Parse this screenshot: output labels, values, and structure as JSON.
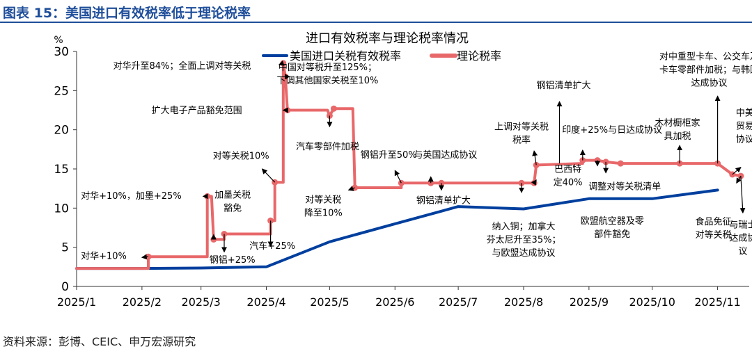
{
  "header": {
    "figure_title": "图表 15：美国进口有效税率低于理论税率"
  },
  "footer": {
    "source": "资料来源：彭博、CEIC、申万宏源研究"
  },
  "colors": {
    "effective": "#003f9e",
    "theoretical": "#e8686a",
    "title": "#1f4e9a",
    "axis": "#333333"
  },
  "chart_data": {
    "type": "line",
    "title": "进口有效税率与理论税率情况",
    "ylabel": "%",
    "xlabel": "",
    "ylim": [
      0,
      30
    ],
    "yticks": [
      0,
      5,
      10,
      15,
      20,
      25,
      30
    ],
    "x_ticks": [
      "2025-01-01",
      "2025-02-01",
      "2025-03-01",
      "2025-04-01",
      "2025-05-01",
      "2025-06-01",
      "2025-07-01",
      "2025-08-01",
      "2025-09-01",
      "2025-10-01",
      "2025-11-01"
    ],
    "x_tick_labels": [
      "2025/1",
      "2025/2",
      "2025/3",
      "2025/4",
      "2025/5",
      "2025/6",
      "2025/7",
      "2025/8",
      "2025/9",
      "2025/10",
      "2025/11"
    ],
    "grid": false,
    "legend_position": "top",
    "series": [
      {
        "name": "美国进口关税有效税率",
        "color": "#003f9e",
        "points": [
          [
            "2025-01-01",
            2.3
          ],
          [
            "2025-02-01",
            2.3
          ],
          [
            "2025-03-01",
            2.35
          ],
          [
            "2025-04-01",
            2.5
          ],
          [
            "2025-05-01",
            5.7
          ],
          [
            "2025-06-01",
            8.0
          ],
          [
            "2025-07-01",
            10.2
          ],
          [
            "2025-08-01",
            9.9
          ],
          [
            "2025-09-01",
            11.2
          ],
          [
            "2025-10-01",
            11.2
          ],
          [
            "2025-11-01",
            12.3
          ]
        ]
      },
      {
        "name": "理论税率",
        "color": "#e8686a",
        "points": [
          [
            "2025-01-01",
            2.3
          ],
          [
            "2025-02-04",
            2.3
          ],
          [
            "2025-02-04",
            3.8
          ],
          [
            "2025-03-04",
            3.8
          ],
          [
            "2025-03-04",
            11.5
          ],
          [
            "2025-03-06",
            11.5
          ],
          [
            "2025-03-07",
            6.0
          ],
          [
            "2025-03-12",
            6.0
          ],
          [
            "2025-03-12",
            6.7
          ],
          [
            "2025-04-03",
            6.7
          ],
          [
            "2025-04-03",
            8.4
          ],
          [
            "2025-04-05",
            8.4
          ],
          [
            "2025-04-05",
            13.3
          ],
          [
            "2025-04-09",
            13.3
          ],
          [
            "2025-04-09",
            28.5
          ],
          [
            "2025-04-10",
            26.8
          ],
          [
            "2025-04-11",
            22.5
          ],
          [
            "2025-04-30",
            22.5
          ],
          [
            "2025-05-01",
            21.8
          ],
          [
            "2025-05-03",
            22.7
          ],
          [
            "2025-05-12",
            22.7
          ],
          [
            "2025-05-13",
            12.6
          ],
          [
            "2025-06-04",
            12.6
          ],
          [
            "2025-06-04",
            13.2
          ],
          [
            "2025-07-31",
            13.2
          ],
          [
            "2025-08-01",
            13.2
          ],
          [
            "2025-08-06",
            13.2
          ],
          [
            "2025-08-07",
            15.5
          ],
          [
            "2025-08-29",
            15.7
          ],
          [
            "2025-08-29",
            16.1
          ],
          [
            "2025-09-05",
            16.1
          ],
          [
            "2025-09-09",
            15.9
          ],
          [
            "2025-09-16",
            15.7
          ],
          [
            "2025-10-14",
            15.7
          ],
          [
            "2025-11-01",
            15.7
          ],
          [
            "2025-11-08",
            14.3
          ],
          [
            "2025-11-12",
            14.1
          ]
        ]
      }
    ],
    "markers": [
      {
        "series": 1,
        "points": [
          [
            "2025-02-04",
            3.8
          ],
          [
            "2025-03-04",
            11.5
          ],
          [
            "2025-03-07",
            6.0
          ],
          [
            "2025-03-12",
            6.7
          ],
          [
            "2025-04-03",
            8.4
          ],
          [
            "2025-04-05",
            13.3
          ],
          [
            "2025-04-09",
            28.5
          ],
          [
            "2025-04-10",
            26.8
          ],
          [
            "2025-04-11",
            22.5
          ],
          [
            "2025-05-01",
            21.8
          ],
          [
            "2025-05-03",
            22.7
          ],
          [
            "2025-05-13",
            12.6
          ],
          [
            "2025-06-04",
            13.2
          ],
          [
            "2025-06-18",
            13.2
          ],
          [
            "2025-06-23",
            13.2
          ],
          [
            "2025-07-31",
            13.2
          ],
          [
            "2025-08-06",
            13.2
          ],
          [
            "2025-08-07",
            15.5
          ],
          [
            "2025-08-29",
            16.1
          ],
          [
            "2025-09-05",
            16.1
          ],
          [
            "2025-09-09",
            15.9
          ],
          [
            "2025-09-16",
            15.7
          ],
          [
            "2025-10-14",
            15.7
          ],
          [
            "2025-11-01",
            15.7
          ],
          [
            "2025-11-08",
            14.3
          ],
          [
            "2025-11-12",
            14.1
          ]
        ]
      }
    ],
    "annotations": [
      {
        "lines": [
          "对华+10%"
        ],
        "at": [
          "2025-02-04",
          3.8
        ],
        "text_at": [
          "2025-01-03",
          3.5
        ],
        "anchor": "start",
        "arrow_to": [
          "2025-02-01",
          3.7
        ]
      },
      {
        "lines": [
          "对华+10%，加墨+25%"
        ],
        "at": [
          "2025-03-04",
          11.5
        ],
        "text_at": [
          "2025-01-03",
          11.2
        ],
        "anchor": "start",
        "arrow_to": [
          "2025-03-02",
          11.5
        ]
      },
      {
        "lines": [
          "加墨关税",
          "豁免"
        ],
        "at": [
          "2025-03-07",
          6.0
        ],
        "text_at": [
          "2025-03-16",
          11.3
        ],
        "anchor": "middle",
        "arrow_to": [
          "2025-03-07",
          6.6
        ]
      },
      {
        "lines": [
          "钢铝+25%"
        ],
        "at": [
          "2025-03-12",
          6.7
        ],
        "text_at": [
          "2025-03-05",
          3.0
        ],
        "anchor": "start",
        "arrow_to": [
          "2025-03-12",
          4.4
        ]
      },
      {
        "lines": [
          "汽车+25%"
        ],
        "at": [
          "2025-04-03",
          8.4
        ],
        "text_at": [
          "2025-03-24",
          4.8
        ],
        "anchor": "start",
        "arrow_to": [
          "2025-04-03",
          5.1
        ]
      },
      {
        "lines": [
          "对等关税10%"
        ],
        "at": [
          "2025-04-05",
          13.3
        ],
        "text_at": [
          "2025-03-20",
          16.3
        ],
        "anchor": "middle",
        "arrow_to": [
          "2025-03-30",
          15.0
        ]
      },
      {
        "lines": [
          "对华升至84%；全面上调对等关税"
        ],
        "at": [
          "2025-04-09",
          28.5
        ],
        "text_at": [
          "2025-02-20",
          27.8
        ],
        "anchor": "middle",
        "arrow_to": [
          "2025-04-07",
          28.3
        ]
      },
      {
        "lines": [
          "中国对等税升至125%；",
          "下调其他国家关税至10%"
        ],
        "at": [
          "2025-04-10",
          26.8
        ],
        "text_at": [
          "2025-04-30",
          27.6
        ],
        "anchor": "middle",
        "arrow_to": [
          "2025-04-12",
          26.8
        ]
      },
      {
        "lines": [
          "扩大电子产品豁免范围"
        ],
        "at": [
          "2025-04-11",
          22.5
        ],
        "text_at": [
          "2025-02-27",
          22.1
        ],
        "anchor": "middle",
        "arrow_to": [
          "2025-04-09",
          22.5
        ]
      },
      {
        "lines": [
          "汽车零部件加税"
        ],
        "at": [
          "2025-05-01",
          21.8
        ],
        "text_at": [
          "2025-04-30",
          17.5
        ],
        "anchor": "middle",
        "arrow_to": [
          "2025-05-01",
          20.4
        ]
      },
      {
        "lines": [
          "对等关税",
          "降至10%"
        ],
        "at": [
          "2025-05-13",
          12.6
        ],
        "text_at": [
          "2025-04-28",
          10.7
        ],
        "anchor": "middle",
        "arrow_to": [
          "2025-05-10",
          12.3
        ]
      },
      {
        "lines": [
          "钢铝升至50%"
        ],
        "at": [
          "2025-06-04",
          13.2
        ],
        "text_at": [
          "2025-05-29",
          16.4
        ],
        "anchor": "middle",
        "arrow_to": [
          "2025-06-01",
          14.8
        ]
      },
      {
        "lines": [
          "与英国达成协议"
        ],
        "at": [
          "2025-06-18",
          13.2
        ],
        "text_at": [
          "2025-06-25",
          16.4
        ],
        "anchor": "middle",
        "arrow_to": [
          "2025-06-18",
          14.0
        ]
      },
      {
        "lines": [
          "钢铝清单扩大"
        ],
        "at": [
          "2025-06-23",
          13.2
        ],
        "text_at": [
          "2025-06-24",
          10.6
        ],
        "anchor": "middle",
        "arrow_to": [
          "2025-06-23",
          12.3
        ]
      },
      {
        "lines": [
          "上调对等关税",
          "税率"
        ],
        "at": [
          "2025-08-07",
          15.5
        ],
        "text_at": [
          "2025-07-31",
          20.0
        ],
        "anchor": "middle",
        "arrow_to": [
          "2025-08-06",
          17.3
        ]
      },
      {
        "lines": [
          "纳入铜；加拿大",
          "芬太尼升至35%；",
          "与欧盟达成协议"
        ],
        "at": [
          "2025-07-31",
          13.2
        ],
        "text_at": [
          "2025-08-01",
          7.3
        ],
        "anchor": "middle",
        "arrow_to": [
          "2025-07-31",
          12.0
        ]
      },
      {
        "lines": [
          "钢铝清单扩大"
        ],
        "at": [
          "2025-08-18",
          15.7
        ],
        "text_at": [
          "2025-08-20",
          25.3
        ],
        "anchor": "middle",
        "arrow_to": [
          "2025-08-18",
          23.6
        ]
      },
      {
        "lines": [
          "巴西特",
          "定40%"
        ],
        "at": [
          "2025-08-06",
          13.2
        ],
        "text_at": [
          "2025-08-22",
          14.6
        ],
        "anchor": "middle",
        "arrow_to": [
          "2025-08-07",
          13.6
        ]
      },
      {
        "lines": [
          "印度+25%与日达成协议"
        ],
        "at": [
          "2025-08-29",
          16.1
        ],
        "text_at": [
          "2025-09-12",
          19.6
        ],
        "anchor": "middle",
        "arrow_to": [
          "2025-08-29",
          17.4
        ]
      },
      {
        "lines": [
          "调整对等关税清单"
        ],
        "at": [
          "2025-09-09",
          15.9
        ],
        "text_at": [
          "2025-09-18",
          12.4
        ],
        "anchor": "middle",
        "arrow_to": [
          "2025-09-09",
          14.5
        ]
      },
      {
        "lines": [
          "欧盟航空器及零",
          "部件豁免"
        ],
        "at": [
          "2025-09-05",
          16.1
        ],
        "text_at": [
          "2025-09-12",
          8.0
        ],
        "anchor": "middle",
        "arrow_to": [
          "2025-09-05",
          15.4
        ]
      },
      {
        "lines": [
          "木材橱柜家",
          "具加税"
        ],
        "at": [
          "2025-10-14",
          15.7
        ],
        "text_at": [
          "2025-10-13",
          20.5
        ],
        "anchor": "middle",
        "arrow_to": [
          "2025-10-14",
          18.0
        ]
      },
      {
        "lines": [
          "对中重型卡车、公交车及",
          "卡车零部件加税；与韩国",
          "达成协议"
        ],
        "at": [
          "2025-11-01",
          15.7
        ],
        "text_at": [
          "2025-10-28",
          29.0
        ],
        "anchor": "middle",
        "arrow_to": [
          "2025-11-01",
          24.3
        ]
      },
      {
        "lines": [
          "中美",
          "贸易",
          "协议"
        ],
        "at": [
          "2025-11-08",
          14.3
        ],
        "text_at": [
          "2025-11-14",
          21.8
        ],
        "anchor": "middle",
        "arrow_to": [
          "2025-11-12",
          15.2
        ]
      },
      {
        "lines": [
          "食品免征",
          "对等关税"
        ],
        "at": [
          "2025-11-12",
          14.1
        ],
        "text_at": [
          "2025-10-30",
          7.9
        ],
        "anchor": "middle",
        "arrow_to": [
          "2025-11-10",
          13.2
        ]
      },
      {
        "lines": [
          "与瑞士",
          "达成协",
          "议"
        ],
        "at": [
          "2025-11-12",
          14.1
        ],
        "text_at": [
          "2025-11-13",
          7.5
        ],
        "anchor": "middle",
        "arrow_to": [
          "2025-11-13",
          9.4
        ]
      }
    ]
  }
}
